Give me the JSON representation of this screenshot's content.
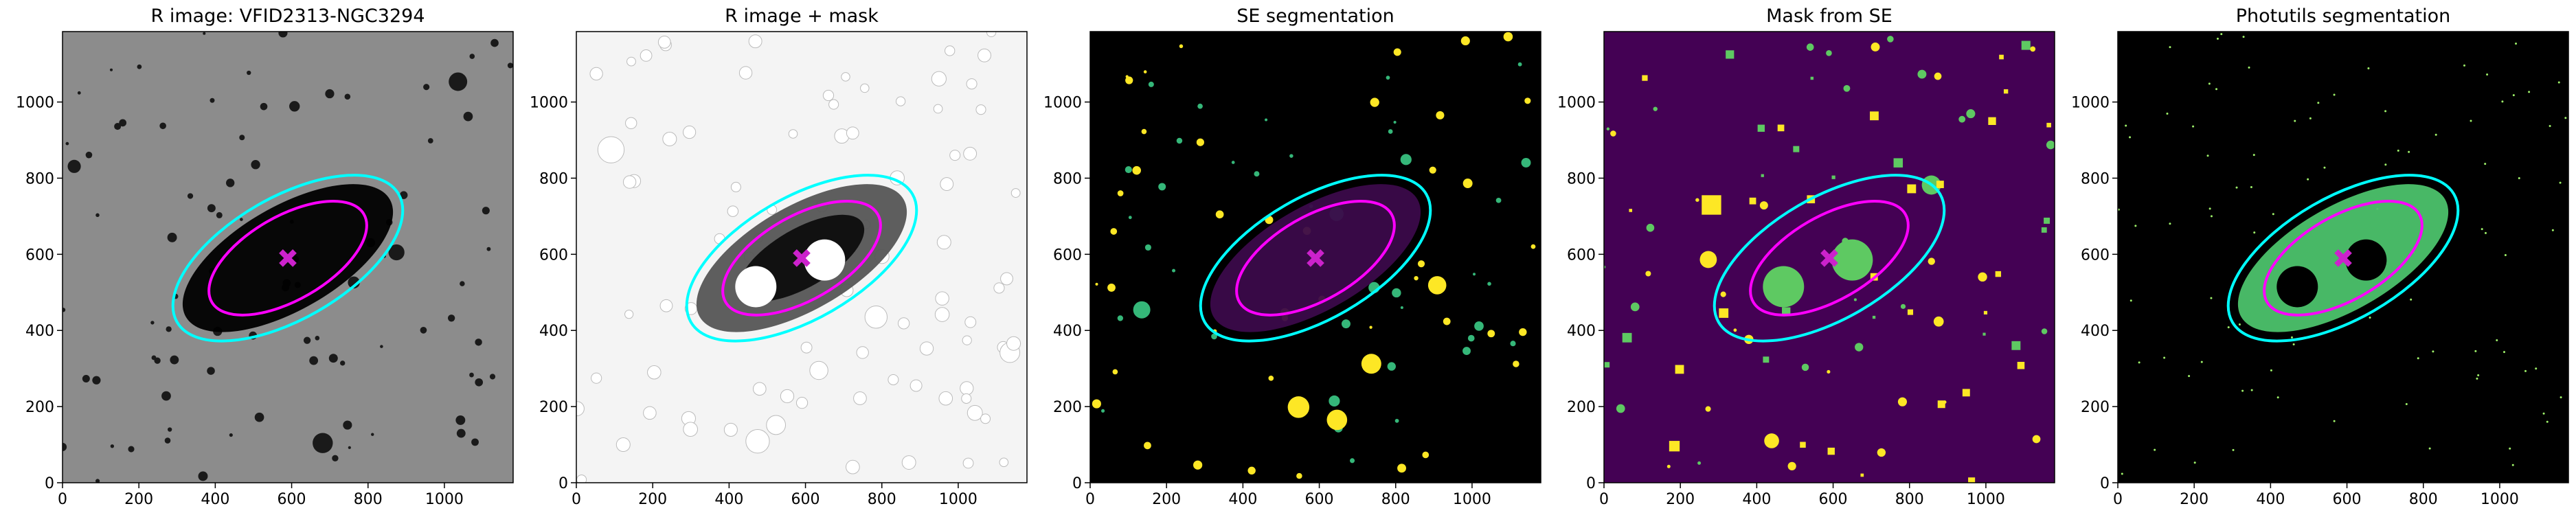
{
  "chart_data": [
    {
      "type": "image",
      "title": "R image: VFID2313-NGC3294",
      "background": "#8c8c8c",
      "galaxy": "#000000",
      "mask_color": null,
      "xlim": [
        0,
        1180
      ],
      "ylim": [
        0,
        1185
      ],
      "xticks": [
        0,
        200,
        400,
        600,
        800,
        1000
      ],
      "yticks": [
        0,
        200,
        400,
        600,
        800,
        1000
      ],
      "center": [
        590,
        590
      ],
      "ellipses": [
        {
          "a": 230,
          "b": 110,
          "angle": 30,
          "color": "#ff00ff"
        },
        {
          "a": 335,
          "b": 160,
          "angle": 30,
          "color": "#00ffff"
        }
      ]
    },
    {
      "type": "image",
      "title": "R image + mask",
      "background": "#f4f4f4",
      "galaxy": "#555555",
      "mask_color": "#ffffff",
      "xlim": [
        0,
        1180
      ],
      "ylim": [
        0,
        1185
      ],
      "xticks": [
        0,
        200,
        400,
        600,
        800,
        1000
      ],
      "yticks": [
        0,
        200,
        400,
        600,
        800,
        1000
      ],
      "center": [
        590,
        590
      ],
      "ellipses": [
        {
          "a": 230,
          "b": 110,
          "angle": 30,
          "color": "#ff00ff"
        },
        {
          "a": 335,
          "b": 160,
          "angle": 30,
          "color": "#00ffff"
        }
      ]
    },
    {
      "type": "image",
      "title": "SE segmentation",
      "background": "#000000",
      "galaxy": "#3b0a4a",
      "mask_color": null,
      "xlim": [
        0,
        1180
      ],
      "ylim": [
        0,
        1185
      ],
      "xticks": [
        0,
        200,
        400,
        600,
        800,
        1000
      ],
      "yticks": [
        0,
        200,
        400,
        600,
        800,
        1000
      ],
      "center": [
        590,
        590
      ],
      "ellipses": [
        {
          "a": 230,
          "b": 110,
          "angle": 30,
          "color": "#ff00ff"
        },
        {
          "a": 335,
          "b": 160,
          "angle": 30,
          "color": "#00ffff"
        }
      ]
    },
    {
      "type": "image",
      "title": "Mask from SE",
      "background": "#440154",
      "galaxy": "#440154",
      "mask_color": "#5ec962",
      "xlim": [
        0,
        1180
      ],
      "ylim": [
        0,
        1185
      ],
      "xticks": [
        0,
        200,
        400,
        600,
        800,
        1000
      ],
      "yticks": [
        0,
        200,
        400,
        600,
        800,
        1000
      ],
      "center": [
        590,
        590
      ],
      "ellipses": [
        {
          "a": 230,
          "b": 110,
          "angle": 30,
          "color": "#ff00ff"
        },
        {
          "a": 335,
          "b": 160,
          "angle": 30,
          "color": "#00ffff"
        }
      ]
    },
    {
      "type": "image",
      "title": "Photutils segmentation",
      "background": "#000000",
      "galaxy": "#4cc26c",
      "mask_color": "#000000",
      "xlim": [
        0,
        1180
      ],
      "ylim": [
        0,
        1185
      ],
      "xticks": [
        0,
        200,
        400,
        600,
        800,
        1000
      ],
      "yticks": [
        0,
        200,
        400,
        600,
        800,
        1000
      ],
      "center": [
        590,
        590
      ],
      "ellipses": [
        {
          "a": 230,
          "b": 110,
          "angle": 30,
          "color": "#ff00ff"
        },
        {
          "a": 335,
          "b": 160,
          "angle": 30,
          "color": "#00ffff"
        }
      ]
    }
  ]
}
